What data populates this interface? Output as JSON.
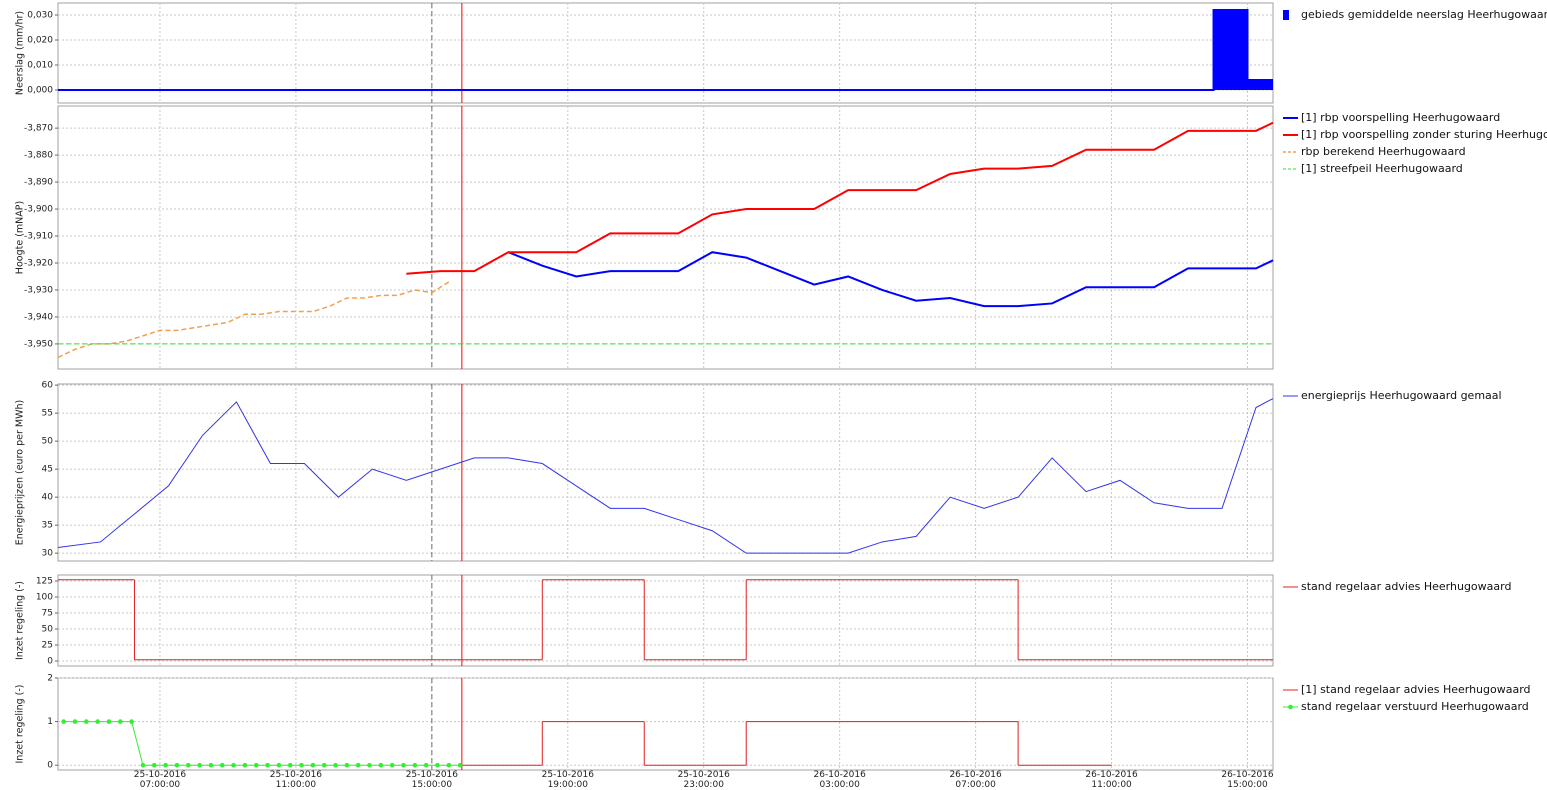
{
  "chart_data": [
    {
      "type": "bar",
      "ylabel": "Neerslag (mm/hr)",
      "ylim": [
        -0.0052,
        0.0348
      ],
      "yticks": [
        {
          "value": 0,
          "label": "0,000"
        },
        {
          "value": 0.01,
          "label": "0,010"
        },
        {
          "value": 0.02,
          "label": "0,020"
        },
        {
          "value": 0.03,
          "label": "0,030"
        }
      ],
      "series": [
        {
          "name": "gebieds gemiddelde neerslag Heerhugowaard",
          "color": "#0000ff",
          "x": [
            "25-10-2016 04:00:00",
            "26-10-2016 14:00:00",
            "26-10-2016 15:00:00"
          ],
          "values": [
            0,
            0.032,
            0.004
          ]
        }
      ]
    },
    {
      "type": "line",
      "ylabel": "Hoogte (mNAP)",
      "ylim": [
        -3.9593,
        -3.8618
      ],
      "yticks": [
        {
          "value": -3.95,
          "label": "-3,950"
        },
        {
          "value": -3.94,
          "label": "-3,940"
        },
        {
          "value": -3.93,
          "label": "-3,930"
        },
        {
          "value": -3.92,
          "label": "-3,920"
        },
        {
          "value": -3.91,
          "label": "-3,910"
        },
        {
          "value": -3.9,
          "label": "-3,900"
        },
        {
          "value": -3.89,
          "label": "-3,890"
        },
        {
          "value": -3.88,
          "label": "-3,880"
        },
        {
          "value": -3.87,
          "label": "-3,870"
        }
      ],
      "series": [
        {
          "name": "[1] rbp voorspelling Heerhugowaard",
          "color": "#0000ff",
          "style": "solid",
          "width": 2,
          "x": [
            "25-10-2016 17:15:00",
            "25-10-2016 18:15:00",
            "25-10-2016 19:15:00",
            "25-10-2016 20:15:00",
            "25-10-2016 21:15:00",
            "25-10-2016 22:15:00",
            "25-10-2016 23:15:00",
            "26-10-2016 00:15:00",
            "26-10-2016 01:15:00",
            "26-10-2016 02:15:00",
            "26-10-2016 03:15:00",
            "26-10-2016 04:15:00",
            "26-10-2016 05:15:00",
            "26-10-2016 06:15:00",
            "26-10-2016 07:15:00",
            "26-10-2016 08:15:00",
            "26-10-2016 09:15:00",
            "26-10-2016 10:15:00",
            "26-10-2016 11:15:00",
            "26-10-2016 12:15:00",
            "26-10-2016 13:15:00",
            "26-10-2016 14:15:00",
            "26-10-2016 15:15:00",
            "26-10-2016 15:45:00"
          ],
          "values": [
            -3.916,
            -3.921,
            -3.925,
            -3.923,
            -3.923,
            -3.923,
            -3.916,
            -3.918,
            -3.923,
            -3.928,
            -3.925,
            -3.93,
            -3.934,
            -3.933,
            -3.936,
            -3.936,
            -3.935,
            -3.929,
            -3.929,
            -3.929,
            -3.922,
            -3.922,
            -3.922,
            -3.919
          ]
        },
        {
          "name": "[1] rbp voorspelling zonder sturing Heerhugowaard",
          "color": "#ff0000",
          "style": "solid",
          "width": 2,
          "x": [
            "25-10-2016 14:15:00",
            "25-10-2016 15:15:00",
            "25-10-2016 16:15:00",
            "25-10-2016 17:15:00",
            "25-10-2016 18:15:00",
            "25-10-2016 19:15:00",
            "25-10-2016 20:15:00",
            "25-10-2016 21:15:00",
            "25-10-2016 22:15:00",
            "25-10-2016 23:15:00",
            "26-10-2016 00:15:00",
            "26-10-2016 01:15:00",
            "26-10-2016 02:15:00",
            "26-10-2016 03:15:00",
            "26-10-2016 04:15:00",
            "26-10-2016 05:15:00",
            "26-10-2016 06:15:00",
            "26-10-2016 07:15:00",
            "26-10-2016 08:15:00",
            "26-10-2016 09:15:00",
            "26-10-2016 10:15:00",
            "26-10-2016 11:15:00",
            "26-10-2016 12:15:00",
            "26-10-2016 13:15:00",
            "26-10-2016 14:15:00",
            "26-10-2016 15:15:00",
            "26-10-2016 15:45:00"
          ],
          "values": [
            -3.924,
            -3.923,
            -3.923,
            -3.916,
            -3.916,
            -3.916,
            -3.909,
            -3.909,
            -3.909,
            -3.902,
            -3.9,
            -3.9,
            -3.9,
            -3.893,
            -3.893,
            -3.893,
            -3.887,
            -3.885,
            -3.885,
            -3.884,
            -3.878,
            -3.878,
            -3.878,
            -3.871,
            -3.871,
            -3.871,
            -3.868
          ]
        },
        {
          "name": "rbp berekend Heerhugowaard",
          "color": "#f0a050",
          "style": "dashed",
          "width": 1.5,
          "x": [
            "25-10-2016 04:00:00",
            "25-10-2016 04:30:00",
            "25-10-2016 05:00:00",
            "25-10-2016 05:30:00",
            "25-10-2016 06:00:00",
            "25-10-2016 06:30:00",
            "25-10-2016 07:00:00",
            "25-10-2016 07:30:00",
            "25-10-2016 08:00:00",
            "25-10-2016 08:30:00",
            "25-10-2016 09:00:00",
            "25-10-2016 09:30:00",
            "25-10-2016 10:00:00",
            "25-10-2016 10:30:00",
            "25-10-2016 11:00:00",
            "25-10-2016 11:30:00",
            "25-10-2016 12:00:00",
            "25-10-2016 12:30:00",
            "25-10-2016 13:00:00",
            "25-10-2016 13:30:00",
            "25-10-2016 14:00:00",
            "25-10-2016 14:30:00",
            "25-10-2016 15:00:00",
            "25-10-2016 15:30:00"
          ],
          "values": [
            -3.955,
            -3.952,
            -3.95,
            -3.95,
            -3.949,
            -3.947,
            -3.945,
            -3.945,
            -3.944,
            -3.943,
            -3.942,
            -3.939,
            -3.939,
            -3.938,
            -3.938,
            -3.938,
            -3.936,
            -3.933,
            -3.933,
            -3.932,
            -3.932,
            -3.93,
            -3.931,
            -3.927
          ]
        },
        {
          "name": "[1] streefpeil Heerhugowaard",
          "color": "#33dd33",
          "style": "dashed",
          "width": 1,
          "x": [
            "25-10-2016 04:00:00",
            "26-10-2016 15:45:00"
          ],
          "values": [
            -3.95,
            -3.95
          ]
        }
      ]
    },
    {
      "type": "line",
      "ylabel": "Energieprijzen (euro per MWh)",
      "ylim": [
        28.6,
        60.2
      ],
      "yticks": [
        30,
        35,
        40,
        45,
        50,
        55,
        60
      ],
      "series": [
        {
          "name": "energieprijs Heerhugowaard gemaal",
          "color": "#3333ee",
          "style": "solid",
          "width": 1,
          "x": [
            "25-10-2016 04:00:00",
            "25-10-2016 05:15:00",
            "25-10-2016 06:15:00",
            "25-10-2016 07:15:00",
            "25-10-2016 08:15:00",
            "25-10-2016 09:15:00",
            "25-10-2016 10:15:00",
            "25-10-2016 11:15:00",
            "25-10-2016 12:15:00",
            "25-10-2016 13:15:00",
            "25-10-2016 14:15:00",
            "25-10-2016 15:15:00",
            "25-10-2016 16:15:00",
            "25-10-2016 17:15:00",
            "25-10-2016 18:15:00",
            "25-10-2016 19:15:00",
            "25-10-2016 20:15:00",
            "25-10-2016 21:15:00",
            "25-10-2016 22:15:00",
            "25-10-2016 23:15:00",
            "26-10-2016 00:15:00",
            "26-10-2016 01:15:00",
            "26-10-2016 02:15:00",
            "26-10-2016 03:15:00",
            "26-10-2016 04:15:00",
            "26-10-2016 05:15:00",
            "26-10-2016 06:15:00",
            "26-10-2016 07:15:00",
            "26-10-2016 08:15:00",
            "26-10-2016 09:15:00",
            "26-10-2016 10:15:00",
            "26-10-2016 11:15:00",
            "26-10-2016 12:15:00",
            "26-10-2016 13:15:00",
            "26-10-2016 14:15:00",
            "26-10-2016 15:15:00",
            "26-10-2016 15:45:00"
          ],
          "values": [
            31,
            32,
            37,
            42,
            51,
            57,
            46,
            46,
            40,
            45,
            43,
            45,
            47,
            47,
            46,
            42,
            38,
            38,
            36,
            34,
            30,
            30,
            30,
            30,
            32,
            33,
            40,
            38,
            40,
            47,
            41,
            43,
            39,
            38,
            38,
            56,
            57.6
          ]
        }
      ]
    },
    {
      "type": "line",
      "ylabel": "Inzet regeling (-)",
      "ylim": [
        -7.8,
        134.4
      ],
      "yticks": [
        0,
        25,
        50,
        75,
        100,
        125
      ],
      "series": [
        {
          "name": "stand regelaar advies Heerhugowaard",
          "color": "#e02020",
          "style": "solid",
          "width": 1,
          "step": true,
          "x": [
            "25-10-2016 04:00:00",
            "25-10-2016 06:15:00",
            "25-10-2016 18:15:00",
            "25-10-2016 21:15:00",
            "26-10-2016 00:15:00",
            "26-10-2016 08:15:00",
            "26-10-2016 15:45:00"
          ],
          "values": [
            127,
            2,
            127,
            2,
            127,
            2,
            2
          ]
        }
      ]
    },
    {
      "type": "line",
      "ylabel": "Inzet regeling (-)",
      "ylim": [
        -0.11,
        2
      ],
      "yticks": [
        0,
        1,
        2
      ],
      "series": [
        {
          "name": "[1] stand regelaar advies Heerhugowaard",
          "color": "#e02020",
          "style": "solid",
          "width": 1,
          "step": true,
          "x": [
            "25-10-2016 15:53:00",
            "25-10-2016 18:15:00",
            "25-10-2016 21:15:00",
            "26-10-2016 00:15:00",
            "26-10-2016 08:15:00",
            "26-10-2016 11:00:00"
          ],
          "values": [
            0,
            1,
            0,
            1,
            0,
            0
          ]
        },
        {
          "name": "stand regelaar verstuurd Heerhugowaard",
          "color": "#33ee33",
          "style": "solid",
          "width": 1,
          "marker": "circle",
          "x": [
            "25-10-2016 04:10:00",
            "25-10-2016 04:30:00",
            "25-10-2016 04:50:00",
            "25-10-2016 05:10:00",
            "25-10-2016 05:30:00",
            "25-10-2016 05:50:00",
            "25-10-2016 06:10:00",
            "25-10-2016 06:30:00",
            "25-10-2016 06:50:00",
            "25-10-2016 07:10:00",
            "25-10-2016 07:30:00",
            "25-10-2016 07:50:00",
            "25-10-2016 08:10:00",
            "25-10-2016 08:30:00",
            "25-10-2016 08:50:00",
            "25-10-2016 09:10:00",
            "25-10-2016 09:30:00",
            "25-10-2016 09:50:00",
            "25-10-2016 10:10:00",
            "25-10-2016 10:30:00",
            "25-10-2016 10:50:00",
            "25-10-2016 11:10:00",
            "25-10-2016 11:30:00",
            "25-10-2016 11:50:00",
            "25-10-2016 12:10:00",
            "25-10-2016 12:30:00",
            "25-10-2016 12:50:00",
            "25-10-2016 13:10:00",
            "25-10-2016 13:30:00",
            "25-10-2016 13:50:00",
            "25-10-2016 14:10:00",
            "25-10-2016 14:30:00",
            "25-10-2016 14:50:00",
            "25-10-2016 15:10:00",
            "25-10-2016 15:30:00",
            "25-10-2016 15:50:00"
          ],
          "values": [
            1,
            1,
            1,
            1,
            1,
            1,
            1,
            0,
            0,
            0,
            0,
            0,
            0,
            0,
            0,
            0,
            0,
            0,
            0,
            0,
            0,
            0,
            0,
            0,
            0,
            0,
            0,
            0,
            0,
            0,
            0,
            0,
            0,
            0,
            0,
            0
          ]
        }
      ],
      "xlim": [
        "25-10-2016 04:00:00",
        "26-10-2016 15:45:00"
      ],
      "xticks": [
        "25-10-2016 07:00:00",
        "25-10-2016 11:00:00",
        "25-10-2016 15:00:00",
        "25-10-2016 19:00:00",
        "25-10-2016 23:00:00",
        "26-10-2016 03:00:00",
        "26-10-2016 07:00:00",
        "26-10-2016 11:00:00",
        "26-10-2016 15:00:00"
      ],
      "vlines": [
        {
          "x": "25-10-2016 15:00:00",
          "color": "#707070",
          "style": "dashed"
        },
        {
          "x": "25-10-2016 15:53:00",
          "color": "#ff0000",
          "style": "solid"
        }
      ]
    }
  ]
}
